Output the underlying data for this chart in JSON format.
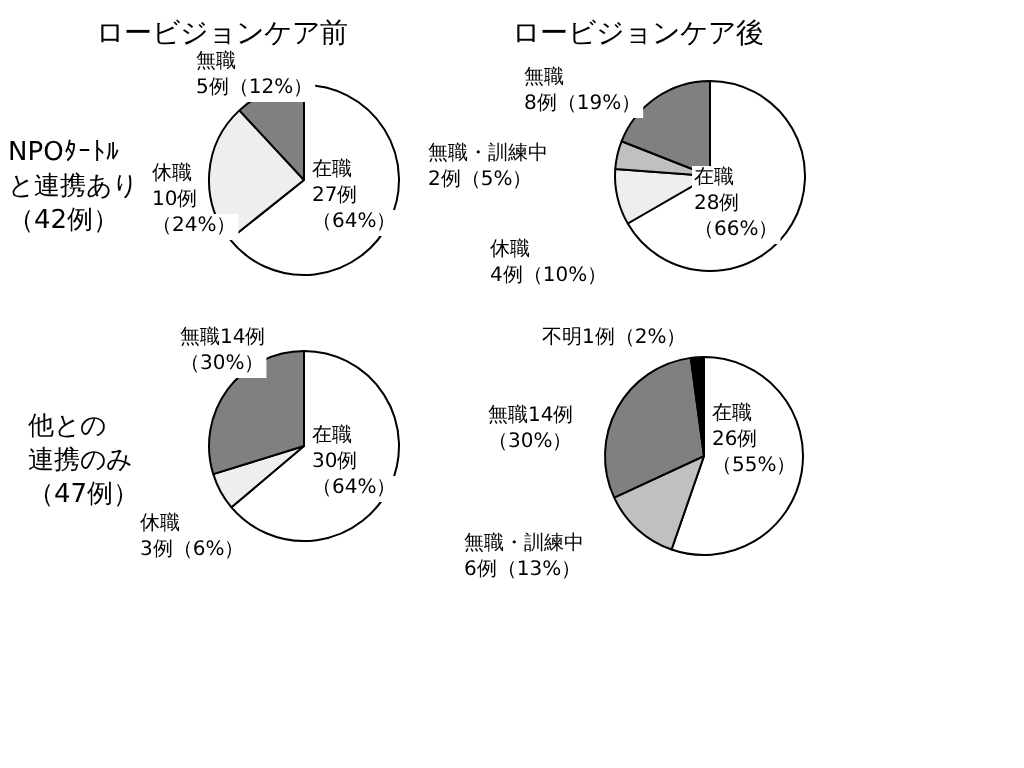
{
  "chart_data": [
    {
      "type": "pie",
      "title": "ロービジョンケア前",
      "annotations": [
        "NPOﾀｰﾄﾙ",
        "と連携あり",
        "（42例）"
      ],
      "categories": [
        "在職",
        "休職",
        "無職"
      ],
      "values": [
        27,
        10,
        5
      ],
      "colors": [
        "#ffffff",
        "#eeeeee",
        "#808080"
      ],
      "value_labels": [
        "27例（64%）",
        "10例（24%）",
        "5例（12%）"
      ]
    },
    {
      "type": "pie",
      "title": "ロービジョンケア後",
      "categories": [
        "在職",
        "休職",
        "無職・訓練中",
        "無職"
      ],
      "values": [
        28,
        4,
        2,
        8
      ],
      "colors": [
        "#ffffff",
        "#eeeeee",
        "#c0c0c0",
        "#808080"
      ],
      "value_labels": [
        "28例（66%）",
        "4例（10%）",
        "2例（5%）",
        "8例（19%）"
      ]
    },
    {
      "type": "pie",
      "annotations": [
        "他との",
        "連携のみ",
        "（47例）"
      ],
      "categories": [
        "在職",
        "休職",
        "無職"
      ],
      "values": [
        30,
        3,
        14
      ],
      "colors": [
        "#ffffff",
        "#eeeeee",
        "#808080"
      ],
      "value_labels": [
        "30例（64%）",
        "3例（6%）",
        "14例（30%）"
      ]
    },
    {
      "type": "pie",
      "categories": [
        "在職",
        "無職・訓練中",
        "無職",
        "不明"
      ],
      "values": [
        26,
        6,
        14,
        1
      ],
      "colors": [
        "#ffffff",
        "#c0c0c0",
        "#808080",
        "#000000"
      ],
      "value_labels": [
        "26例（55%）",
        "6例（13%）",
        "14例（30%）",
        "1例（2%）"
      ]
    }
  ]
}
